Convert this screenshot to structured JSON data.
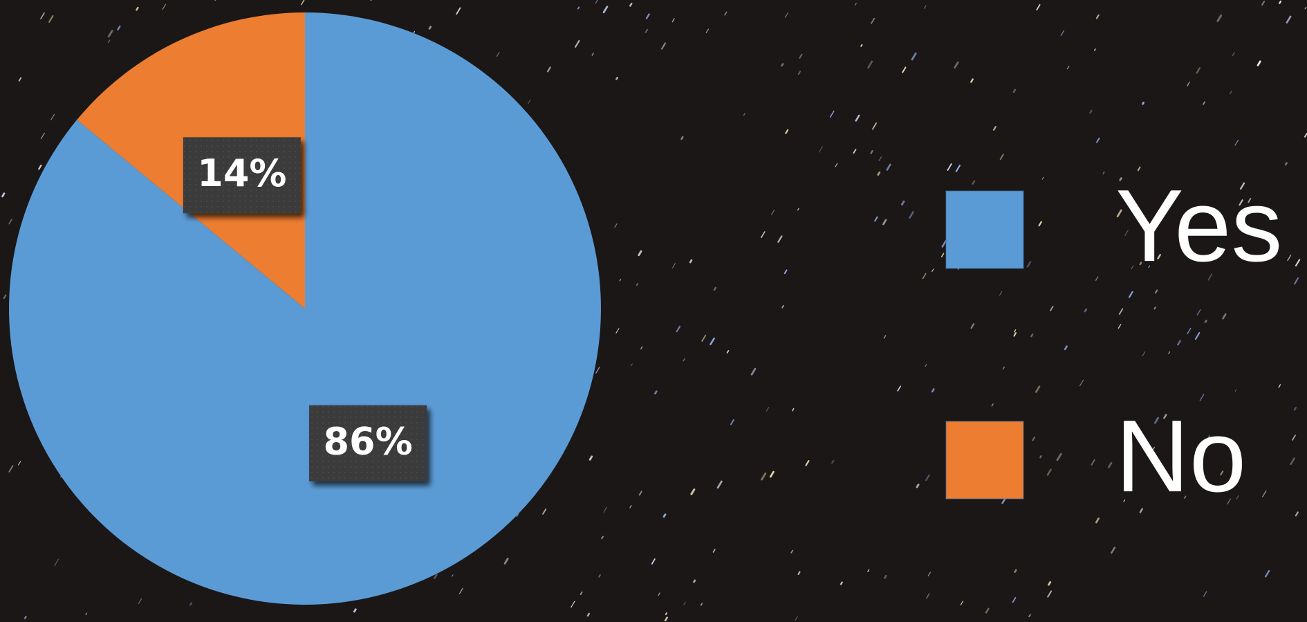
{
  "chart_data": {
    "type": "pie",
    "categories": [
      "Yes",
      "No"
    ],
    "values": [
      86,
      14
    ],
    "value_labels": [
      "86%",
      "14%"
    ],
    "colors": [
      "#5b9bd5",
      "#ed7d31"
    ],
    "legend": "right"
  }
}
